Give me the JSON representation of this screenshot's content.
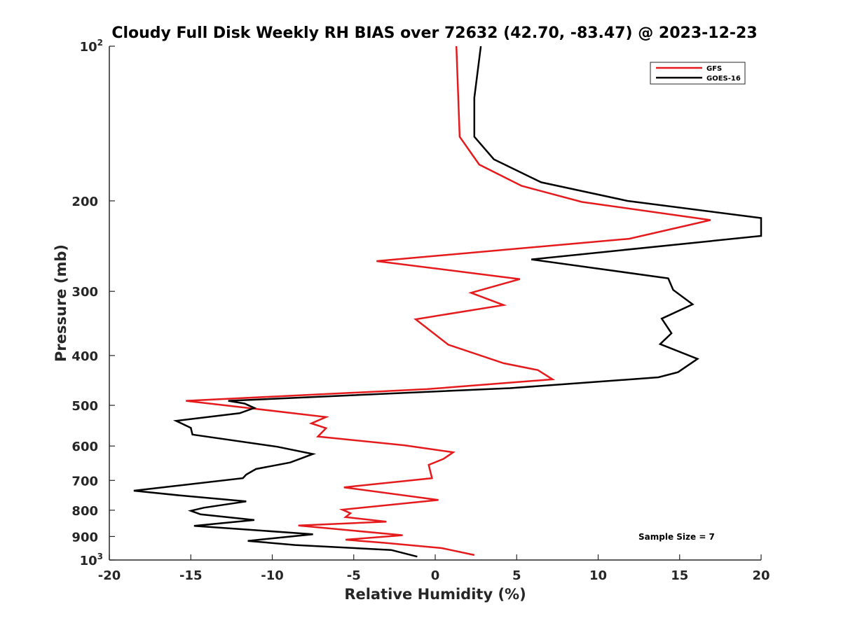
{
  "chart_data": {
    "type": "line",
    "title": "Cloudy Full Disk Weekly RH BIAS over 72632 (42.70, -83.47) @ 2023-12-23",
    "xlabel": "Relative Humidity (%)",
    "ylabel": "Pressure (mb)",
    "xlim": [
      -20,
      20
    ],
    "ylim": [
      1000,
      100
    ],
    "y_scale": "log",
    "y_reversed": true,
    "grid": false,
    "legend_position": "top-right",
    "x_ticks": [
      -20,
      -15,
      -10,
      -5,
      0,
      5,
      10,
      15,
      20
    ],
    "x_tick_labels": [
      "-20",
      "-15",
      "-10",
      "-5",
      "0",
      "5",
      "10",
      "15",
      "20"
    ],
    "y_ticks": [
      {
        "value": 100,
        "base": "10",
        "exp": "2"
      },
      {
        "value": 200,
        "label": "200"
      },
      {
        "value": 300,
        "label": "300"
      },
      {
        "value": 400,
        "label": "400"
      },
      {
        "value": 500,
        "label": "500"
      },
      {
        "value": 600,
        "label": "600"
      },
      {
        "value": 700,
        "label": "700"
      },
      {
        "value": 800,
        "label": "800"
      },
      {
        "value": 900,
        "label": "900"
      },
      {
        "value": 1000,
        "base": "10",
        "exp": "3"
      }
    ],
    "series": [
      {
        "name": "GFS",
        "color": "#e41a1c",
        "points": [
          [
            1.3,
            100
          ],
          [
            1.5,
            150
          ],
          [
            2.7,
            170
          ],
          [
            5.3,
            187
          ],
          [
            9.0,
            201
          ],
          [
            16.9,
            218
          ],
          [
            11.9,
            237
          ],
          [
            -3.6,
            262
          ],
          [
            5.2,
            284
          ],
          [
            2.2,
            302
          ],
          [
            4.2,
            319
          ],
          [
            -1.2,
            340
          ],
          [
            0.8,
            381
          ],
          [
            4.2,
            414
          ],
          [
            6.3,
            427
          ],
          [
            7.2,
            445
          ],
          [
            -0.5,
            465
          ],
          [
            -15.3,
            490
          ],
          [
            -11.0,
            508
          ],
          [
            -6.7,
            527
          ],
          [
            -7.6,
            542
          ],
          [
            -6.7,
            554
          ],
          [
            -7.2,
            575
          ],
          [
            -1.9,
            598
          ],
          [
            1.1,
            617
          ],
          [
            0.5,
            636
          ],
          [
            -0.4,
            653
          ],
          [
            -0.2,
            693
          ],
          [
            -5.6,
            722
          ],
          [
            0.2,
            764
          ],
          [
            -5.7,
            798
          ],
          [
            -5.2,
            811
          ],
          [
            -5.5,
            825
          ],
          [
            -3.0,
            842
          ],
          [
            -8.4,
            857
          ],
          [
            -2.0,
            895
          ],
          [
            -5.5,
            913
          ],
          [
            -3.1,
            926
          ],
          [
            0.4,
            948
          ],
          [
            2.4,
            978
          ]
        ]
      },
      {
        "name": "GOES-16",
        "color": "#000000",
        "points": [
          [
            2.8,
            100
          ],
          [
            2.4,
            126
          ],
          [
            2.4,
            150
          ],
          [
            3.6,
            166
          ],
          [
            6.5,
            184
          ],
          [
            11.8,
            200
          ],
          [
            20.0,
            216
          ],
          [
            20.0,
            234
          ],
          [
            5.9,
            260
          ],
          [
            14.3,
            283
          ],
          [
            14.6,
            298
          ],
          [
            15.8,
            318
          ],
          [
            13.9,
            339
          ],
          [
            14.5,
            362
          ],
          [
            13.8,
            380
          ],
          [
            16.1,
            406
          ],
          [
            14.9,
            431
          ],
          [
            13.7,
            441
          ],
          [
            4.6,
            463
          ],
          [
            -12.7,
            490
          ],
          [
            -11.7,
            496
          ],
          [
            -11.1,
            506
          ],
          [
            -12.0,
            518
          ],
          [
            -15.9,
            536
          ],
          [
            -15.0,
            553
          ],
          [
            -14.9,
            570
          ],
          [
            -9.7,
            602
          ],
          [
            -7.5,
            622
          ],
          [
            -8.9,
            646
          ],
          [
            -11.0,
            665
          ],
          [
            -11.6,
            682
          ],
          [
            -11.8,
            693
          ],
          [
            -18.5,
            733
          ],
          [
            -15.6,
            749
          ],
          [
            -11.6,
            769
          ],
          [
            -14.2,
            791
          ],
          [
            -15.0,
            802
          ],
          [
            -14.4,
            815
          ],
          [
            -11.1,
            836
          ],
          [
            -14.8,
            858
          ],
          [
            -7.5,
            891
          ],
          [
            -11.5,
            918
          ],
          [
            -8.6,
            935
          ],
          [
            -2.7,
            956
          ],
          [
            -1.1,
            985
          ]
        ]
      }
    ],
    "annotation": "Sample Size = 7"
  }
}
